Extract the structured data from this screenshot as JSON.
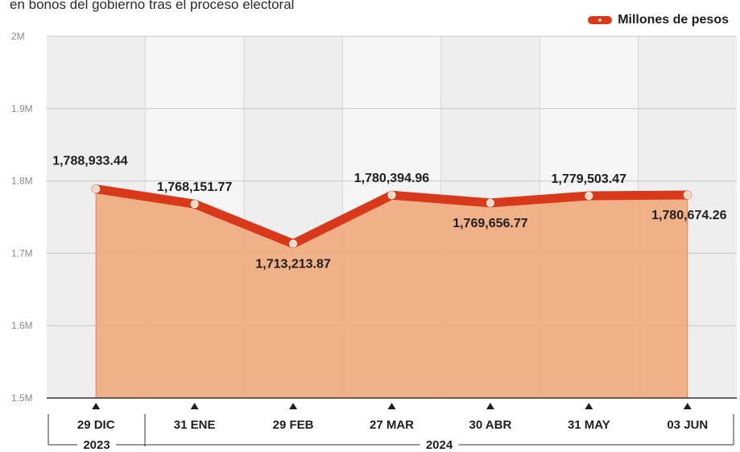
{
  "subtitle": "en bonos del gobierno tras el proceso electoral",
  "colors": {
    "line": "#d8391b",
    "area": "#f0aa7d",
    "panel": "#eeeeee",
    "marker_fill": "#f9d6c0"
  },
  "chart_data": {
    "type": "area",
    "categories": [
      "29 DIC",
      "31 ENE",
      "29 FEB",
      "27 MAR",
      "30 ABR",
      "31 MAY",
      "03 JUN"
    ],
    "series": [
      {
        "name": "Millones de pesos",
        "values": [
          1788933.44,
          1768151.77,
          1713213.87,
          1780394.96,
          1769656.77,
          1779503.47,
          1780674.26
        ]
      }
    ],
    "data_labels": [
      "1,788,933.44",
      "1,768,151.77",
      "1,713,213.87",
      "1,780,394.96",
      "1,769,656.77",
      "1,779,503.47",
      "1,780,674.26"
    ],
    "label_position": [
      "above",
      "above",
      "below",
      "above",
      "below",
      "above",
      "below"
    ],
    "ylim": [
      1500000,
      2000000
    ],
    "yticks": [
      1500000,
      1600000,
      1700000,
      1800000,
      1900000,
      2000000
    ],
    "ytick_labels": [
      "1.5M",
      "1.6M",
      "1.7M",
      "1.8M",
      "1.9M",
      "2M"
    ],
    "year_groups": [
      {
        "label": "2023",
        "from": 0,
        "to": 0
      },
      {
        "label": "2024",
        "from": 1,
        "to": 6
      }
    ],
    "grid": true,
    "legend": "top-right"
  }
}
